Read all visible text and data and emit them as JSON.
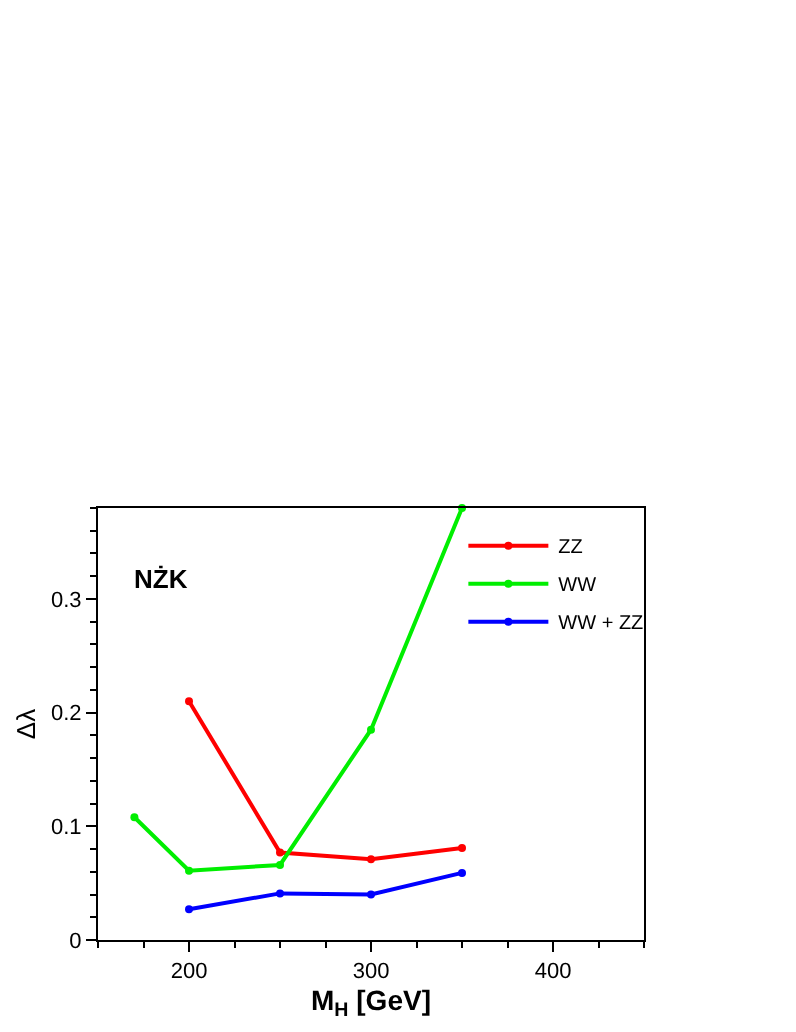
{
  "chart_data": {
    "type": "line",
    "xlabel": "M$_{H}$ [GeV]",
    "ylabel": "Δλ",
    "annotations": [
      "NŻK"
    ],
    "xlim": [
      150,
      450
    ],
    "xticks": [
      200,
      300,
      400
    ],
    "ylim": [
      0,
      0.38
    ],
    "yticks": [
      0,
      0.1,
      0.2,
      0.3
    ],
    "legend": "top right",
    "marker": "circle",
    "line_style": "solid",
    "series": [
      {
        "name": "ZZ",
        "color": "#ff0000",
        "x": [
          200,
          250,
          300,
          350
        ],
        "values": [
          0.21,
          0.077,
          0.071,
          0.081
        ]
      },
      {
        "name": "WW",
        "color": "#00ee00",
        "x": [
          170,
          200,
          250,
          300,
          350
        ],
        "values": [
          0.108,
          0.061,
          0.066,
          0.185,
          0.38
        ]
      },
      {
        "name": "WW + ZZ",
        "color": "#0000ff",
        "x": [
          200,
          250,
          300,
          350
        ],
        "values": [
          0.027,
          0.041,
          0.04,
          0.059
        ]
      }
    ]
  }
}
